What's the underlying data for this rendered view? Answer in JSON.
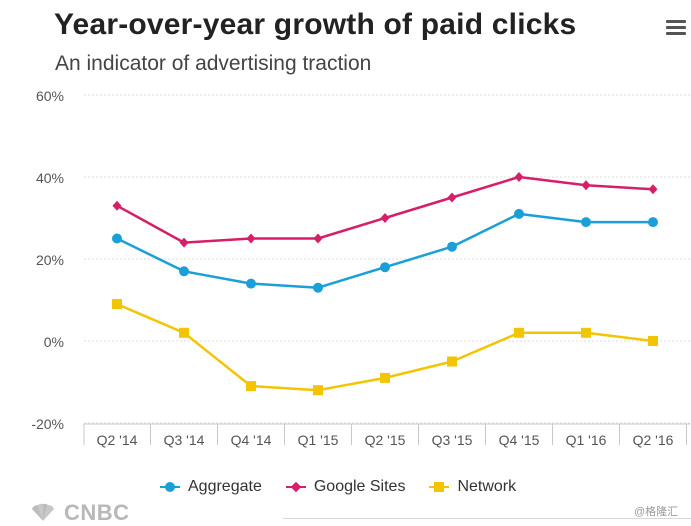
{
  "header": {
    "title": "Year-over-year growth of paid clicks",
    "subtitle": "An indicator of advertising traction",
    "menu_icon": "hamburger-menu-icon"
  },
  "chart_data": {
    "type": "line",
    "title": "Year-over-year growth of paid clicks",
    "subtitle": "An indicator of advertising traction",
    "xlabel": "",
    "ylabel": "",
    "categories": [
      "Q2 '14",
      "Q3 '14",
      "Q4 '14",
      "Q1 '15",
      "Q2 '15",
      "Q3 '15",
      "Q4 '15",
      "Q1 '16",
      "Q2 '16"
    ],
    "ylim": [
      -20,
      60
    ],
    "yticks": [
      -20,
      0,
      20,
      40,
      60
    ],
    "ytick_labels": [
      "-20%",
      "0%",
      "20%",
      "40%",
      "60%"
    ],
    "grid": "horizontal",
    "legend_position": "bottom",
    "series": [
      {
        "name": "Aggregate",
        "color": "#1a9fd6",
        "marker": "circle",
        "values": [
          25,
          17,
          14,
          13,
          18,
          23,
          31,
          29,
          29
        ]
      },
      {
        "name": "Google Sites",
        "color": "#d61f69",
        "marker": "diamond",
        "values": [
          33,
          24,
          25,
          25,
          30,
          35,
          40,
          38,
          37
        ]
      },
      {
        "name": "Network",
        "color": "#f2c500",
        "marker": "square",
        "values": [
          9,
          2,
          -11,
          -12,
          -9,
          -5,
          2,
          2,
          0
        ]
      }
    ]
  },
  "footer": {
    "logo_text": "CNBC",
    "watermark": "@格隆汇"
  }
}
